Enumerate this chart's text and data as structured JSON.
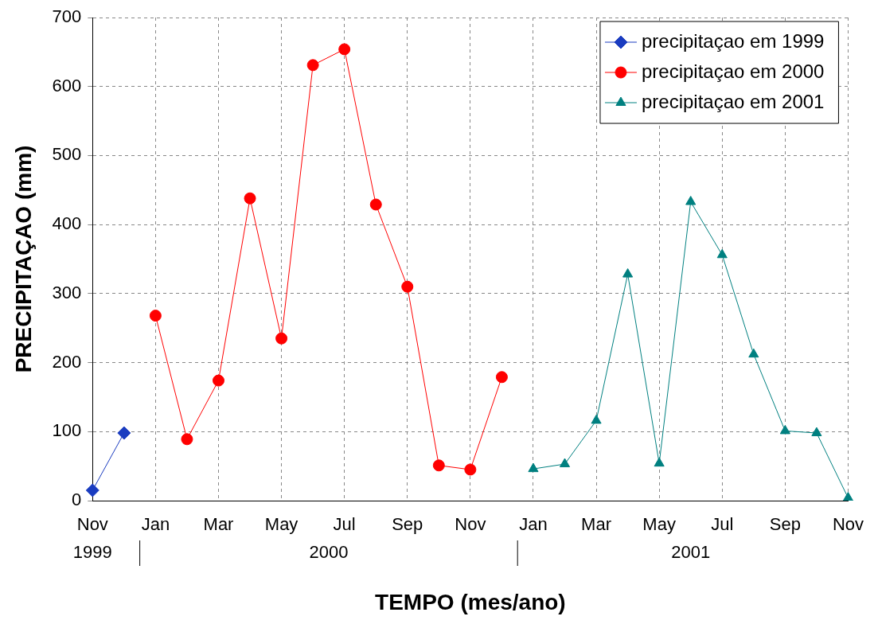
{
  "chart_data": {
    "type": "line",
    "xlabel": "TEMPO (mes/ano)",
    "ylabel": "PRECIPITAÇAO (mm)",
    "categories": [
      "Nov",
      null,
      "Jan",
      null,
      "Mar",
      null,
      "May",
      null,
      "Jul",
      null,
      "Sep",
      null,
      "Nov",
      null,
      "Jan",
      null,
      "Mar",
      null,
      "May",
      null,
      "Jul",
      null,
      "Sep",
      null,
      "Nov"
    ],
    "series": [
      {
        "name": "precipitaçao em 1999",
        "color": "#1a3cc0",
        "marker": "diamond",
        "values": [
          15,
          98,
          null,
          null,
          null,
          null,
          null,
          null,
          null,
          null,
          null,
          null,
          null,
          null,
          null,
          null,
          null,
          null,
          null,
          null,
          null,
          null,
          null,
          null,
          null
        ]
      },
      {
        "name": "precipitaçao em 2000",
        "color": "#ff0000",
        "marker": "circle",
        "values": [
          null,
          null,
          268,
          89,
          174,
          438,
          235,
          631,
          654,
          429,
          310,
          51,
          45,
          179,
          null,
          null,
          null,
          null,
          null,
          null,
          null,
          null,
          null,
          null,
          null
        ]
      },
      {
        "name": "precipitaçao em 2001",
        "color": "#008080",
        "marker": "triangle",
        "values": [
          null,
          null,
          null,
          null,
          null,
          null,
          null,
          null,
          null,
          null,
          null,
          null,
          null,
          null,
          46,
          53,
          116,
          328,
          54,
          433,
          356,
          212,
          101,
          98,
          4
        ]
      }
    ],
    "ylim": [
      0,
      700
    ],
    "yticks": [
      0,
      100,
      200,
      300,
      400,
      500,
      600,
      700
    ],
    "grid": true,
    "legend": "top right",
    "line_style": "solid",
    "annotations": [
      "1999",
      "2000",
      "2001"
    ]
  }
}
